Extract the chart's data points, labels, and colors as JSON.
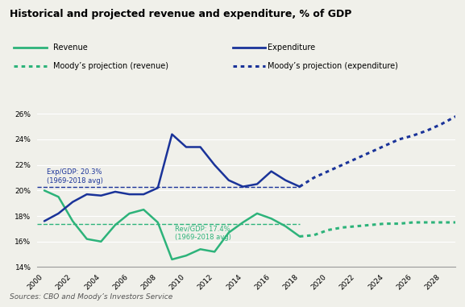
{
  "title": "Historical and projected revenue and expenditure, % of GDP",
  "source": "Sources: CBO and Moody’s Investors Service",
  "revenue_color": "#2db37a",
  "expenditure_color": "#1a3399",
  "revenue_hist": {
    "years": [
      2000,
      2001,
      2002,
      2003,
      2004,
      2005,
      2006,
      2007,
      2008,
      2009,
      2010,
      2011,
      2012,
      2013,
      2014,
      2015,
      2016,
      2017,
      2018
    ],
    "values": [
      20.0,
      19.5,
      17.6,
      16.2,
      16.0,
      17.3,
      18.2,
      18.5,
      17.5,
      14.6,
      14.9,
      15.4,
      15.2,
      16.7,
      17.5,
      18.2,
      17.8,
      17.2,
      16.4
    ]
  },
  "expenditure_hist": {
    "years": [
      2000,
      2001,
      2002,
      2003,
      2004,
      2005,
      2006,
      2007,
      2008,
      2009,
      2010,
      2011,
      2012,
      2013,
      2014,
      2015,
      2016,
      2017,
      2018
    ],
    "values": [
      17.6,
      18.2,
      19.1,
      19.7,
      19.6,
      19.9,
      19.7,
      19.7,
      20.2,
      24.4,
      23.4,
      23.4,
      22.0,
      20.8,
      20.3,
      20.5,
      21.5,
      20.8,
      20.3
    ]
  },
  "revenue_proj": {
    "years": [
      2018,
      2019,
      2020,
      2021,
      2022,
      2023,
      2024,
      2025,
      2026,
      2027,
      2028,
      2029
    ],
    "values": [
      16.4,
      16.5,
      16.9,
      17.1,
      17.2,
      17.3,
      17.4,
      17.4,
      17.5,
      17.5,
      17.5,
      17.5
    ]
  },
  "expenditure_proj": {
    "years": [
      2018,
      2019,
      2020,
      2021,
      2022,
      2023,
      2024,
      2025,
      2026,
      2027,
      2028,
      2029
    ],
    "values": [
      20.3,
      21.0,
      21.5,
      22.0,
      22.5,
      23.0,
      23.5,
      24.0,
      24.3,
      24.7,
      25.2,
      25.8
    ]
  },
  "avg_exp": 20.3,
  "avg_rev": 17.4,
  "avg_exp_label": "Exp/GDP: 20.3%\n(1969-2018 avg)",
  "avg_rev_label": "Rev/GDP: 17.4%\n(1969-2018 avg)",
  "ylim": [
    14.0,
    26.5
  ],
  "yticks": [
    14,
    16,
    18,
    20,
    22,
    24,
    26
  ],
  "xlim": [
    1999.5,
    2029
  ],
  "xticks": [
    2000,
    2002,
    2004,
    2006,
    2008,
    2010,
    2012,
    2014,
    2016,
    2018,
    2020,
    2022,
    2024,
    2026,
    2028
  ],
  "background_color": "#f0f0ea",
  "plot_bg_color": "#f0f0ea"
}
